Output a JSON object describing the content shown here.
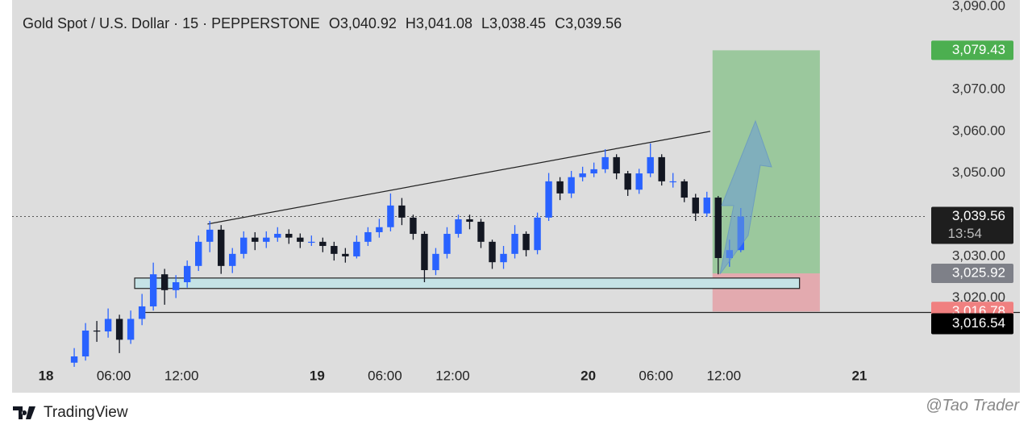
{
  "chart_data": {
    "type": "candlestick",
    "title": "Gold Spot / U.S. Dollar · 15 · PEPPERSTONE",
    "ohlc_header": [
      {
        "name": "O",
        "value": 3040.92,
        "label": "3,040.92"
      },
      {
        "name": "H",
        "value": 3041.08,
        "label": "3,041.08"
      },
      {
        "name": "L",
        "value": 3038.45,
        "label": "3,038.45"
      },
      {
        "name": "C",
        "value": 3039.56,
        "label": "3,039.56"
      }
    ],
    "x": [
      2,
      3,
      4,
      5,
      6,
      7,
      8,
      9,
      10,
      11,
      12,
      13,
      14,
      15,
      16,
      17,
      18,
      19,
      20,
      21,
      22,
      23,
      24,
      25,
      26,
      27,
      28,
      29,
      30,
      31,
      32,
      33,
      34,
      35,
      36,
      37,
      38,
      39,
      40,
      41,
      42,
      43,
      44,
      45,
      46,
      47,
      48,
      49,
      50,
      51,
      52,
      53,
      54,
      55,
      56,
      57,
      58,
      59,
      60,
      61
    ],
    "open": [
      3004.5,
      3006,
      3012.2,
      3012,
      3015,
      3010,
      3015,
      3018,
      3025.7,
      3021.9,
      3023.8,
      3027.7,
      3033.5,
      3036.4,
      3027.7,
      3030.6,
      3034.5,
      3033.5,
      3034.5,
      3035.4,
      3034.5,
      3033.5,
      3033.5,
      3032.5,
      3030.6,
      3030,
      3033.5,
      3035.8,
      3037,
      3042.2,
      3039.3,
      3035.4,
      3026.7,
      3030.6,
      3035.4,
      3038.9,
      3038.3,
      3033.5,
      3028.6,
      3030.6,
      3035.4,
      3031.5,
      3039.3,
      3048,
      3045.1,
      3049,
      3049.9,
      3050.9,
      3053.8,
      3049.9,
      3046,
      3049.9,
      3053.8,
      3048,
      3048,
      3044.1,
      3040.3,
      3044.1,
      3029.6,
      3031.5
    ],
    "high": [
      3008,
      3014,
      3014.5,
      3017.5,
      3016,
      3017,
      3021,
      3028.5,
      3027,
      3025.5,
      3029,
      3035,
      3038.5,
      3037.5,
      3032,
      3036,
      3035.8,
      3036,
      3037,
      3036.5,
      3035.5,
      3035,
      3034.5,
      3033.5,
      3032,
      3035,
      3037,
      3039,
      3045.1,
      3044,
      3040,
      3036,
      3032,
      3037,
      3040,
      3040,
      3039,
      3034,
      3032.5,
      3037.5,
      3036,
      3040.5,
      3050,
      3049,
      3050.5,
      3051.5,
      3052.5,
      3055.7,
      3054.5,
      3050.5,
      3051,
      3057.1,
      3054.5,
      3050,
      3048.5,
      3045,
      3045.5,
      3044.5,
      3034,
      3041.6
    ],
    "low": [
      3003.5,
      3005,
      3009.5,
      3010.5,
      3006.8,
      3009,
      3013.5,
      3017,
      3018.4,
      3020,
      3022.5,
      3026.5,
      3031,
      3025.8,
      3026,
      3029.5,
      3031.5,
      3032,
      3033.5,
      3033,
      3032,
      3032.5,
      3031,
      3029,
      3028.5,
      3029.5,
      3032.5,
      3034.5,
      3036,
      3037.5,
      3034,
      3023.8,
      3025.5,
      3029.5,
      3034.5,
      3036.5,
      3032,
      3027,
      3027,
      3029.5,
      3030,
      3030.5,
      3038.5,
      3043.5,
      3044,
      3048,
      3049,
      3050,
      3048.5,
      3044.5,
      3045,
      3049,
      3047,
      3046.5,
      3043,
      3038.5,
      3039.5,
      3025.7,
      3027.5,
      3031
    ],
    "close": [
      3006,
      3012.2,
      3012,
      3015,
      3010,
      3015,
      3018,
      3025.7,
      3021.9,
      3023.8,
      3027.7,
      3033.5,
      3036.4,
      3027.7,
      3030.6,
      3034.5,
      3033.5,
      3034.5,
      3035.4,
      3034.5,
      3033.5,
      3033.5,
      3032.5,
      3030.6,
      3030,
      3033.5,
      3035.8,
      3037,
      3042.2,
      3039.3,
      3035.4,
      3026.7,
      3030.6,
      3035.4,
      3038.9,
      3038.3,
      3033.5,
      3028.6,
      3030.6,
      3035.4,
      3031.5,
      3039.3,
      3048,
      3045.1,
      3049,
      3049.9,
      3050.9,
      3053.8,
      3049.9,
      3046,
      3049.9,
      3053.8,
      3048,
      3048,
      3044.1,
      3040.3,
      3044.1,
      3029.6,
      3031.5,
      3039.56
    ],
    "up_color": "#2962ff",
    "down_color": "#131722",
    "xlim": [
      -3,
      78
    ],
    "ylim": [
      2997.3,
      3091.5
    ],
    "xticks": [
      {
        "value": 0,
        "label": "18"
      },
      {
        "value": 6,
        "label": "06:00"
      },
      {
        "value": 12,
        "label": "12:00"
      },
      {
        "value": 24,
        "label": "19"
      },
      {
        "value": 30,
        "label": "06:00"
      },
      {
        "value": 36,
        "label": "12:00"
      },
      {
        "value": 48,
        "label": "20"
      },
      {
        "value": 54,
        "label": "06:00"
      },
      {
        "value": 60,
        "label": "12:00"
      },
      {
        "value": 72,
        "label": "21"
      }
    ],
    "yticks": [
      {
        "value": 3020,
        "label": "3,020.00"
      },
      {
        "value": 3030,
        "label": "3,030.00"
      },
      {
        "value": 3050,
        "label": "3,050.00"
      },
      {
        "value": 3060,
        "label": "3,060.00"
      },
      {
        "value": 3070,
        "label": "3,070.00"
      },
      {
        "value": 3090,
        "label": "3,090.00"
      }
    ],
    "last_price": {
      "value": 3039.56,
      "label": "3,039.56",
      "countdown": "13:54"
    },
    "trendline": {
      "x": [
        14.3,
        58.8
      ],
      "y": [
        3037.75,
        3060
      ]
    },
    "support_box": {
      "x": [
        7.85,
        66.7
      ],
      "y": [
        3022.3,
        3024.8
      ]
    },
    "hline": {
      "value": 3016.54,
      "label": "3,016.54",
      "x_start": 8.3
    },
    "position": {
      "x": [
        59,
        68.5
      ],
      "entry": {
        "value": 3025.92,
        "label": "3,025.92"
      },
      "target": {
        "value": 3079.43,
        "label": "3,079.43"
      },
      "stop": {
        "value": 3016.78,
        "label": "3,016.78"
      },
      "profit_color": "#4caf50",
      "loss_color": "#f23645"
    }
  },
  "footer": {
    "brand": "TradingView",
    "watermark": "@Tao Trader"
  }
}
